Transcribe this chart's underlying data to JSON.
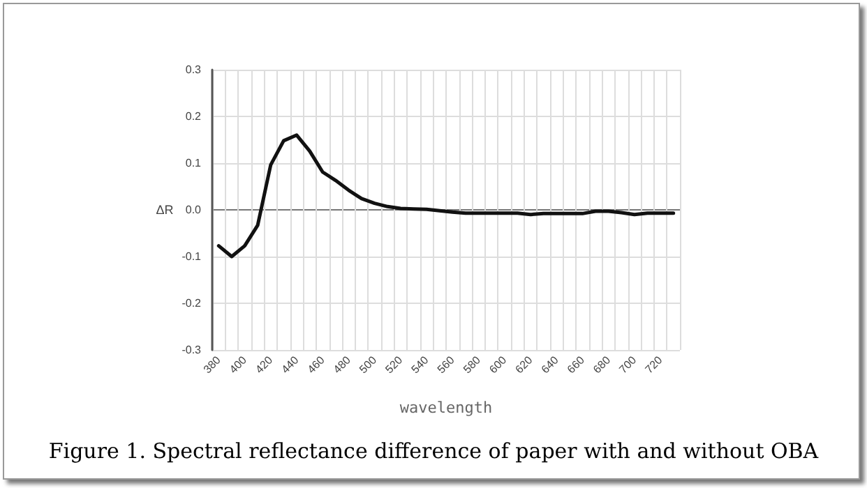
{
  "chart_data": {
    "type": "line",
    "title": "Figure 1. Spectral reflectance difference of paper with and without OBA",
    "xlabel": "wavelength",
    "ylabel": "ΔR",
    "categories": [
      "380",
      null,
      "400",
      null,
      "420",
      null,
      "440",
      null,
      "460",
      null,
      "480",
      null,
      "500",
      null,
      "520",
      null,
      "540",
      null,
      "560",
      null,
      "580",
      null,
      "600",
      null,
      "620",
      null,
      "640",
      null,
      "660",
      null,
      "680",
      null,
      "700",
      null,
      "720",
      null
    ],
    "series": [
      {
        "color": "#111111",
        "values": [
          -0.077,
          -0.1,
          -0.077,
          -0.033,
          0.096,
          0.148,
          0.16,
          0.126,
          0.081,
          0.063,
          0.042,
          0.024,
          0.014,
          0.007,
          0.003,
          0.002,
          0.001,
          -0.002,
          -0.005,
          -0.007,
          -0.007,
          -0.007,
          -0.007,
          -0.007,
          -0.01,
          -0.008,
          -0.008,
          -0.008,
          -0.008,
          -0.003,
          -0.003,
          -0.006,
          -0.01,
          -0.007,
          -0.007,
          -0.007
        ]
      }
    ],
    "ylim": [
      -0.3,
      0.3
    ],
    "yticks": [
      -0.3,
      -0.2,
      -0.1,
      {
        "value": 0,
        "label": "0.0"
      },
      0.1,
      0.2,
      0.3
    ],
    "grid": true,
    "marker": "none",
    "line_style": "solid"
  }
}
